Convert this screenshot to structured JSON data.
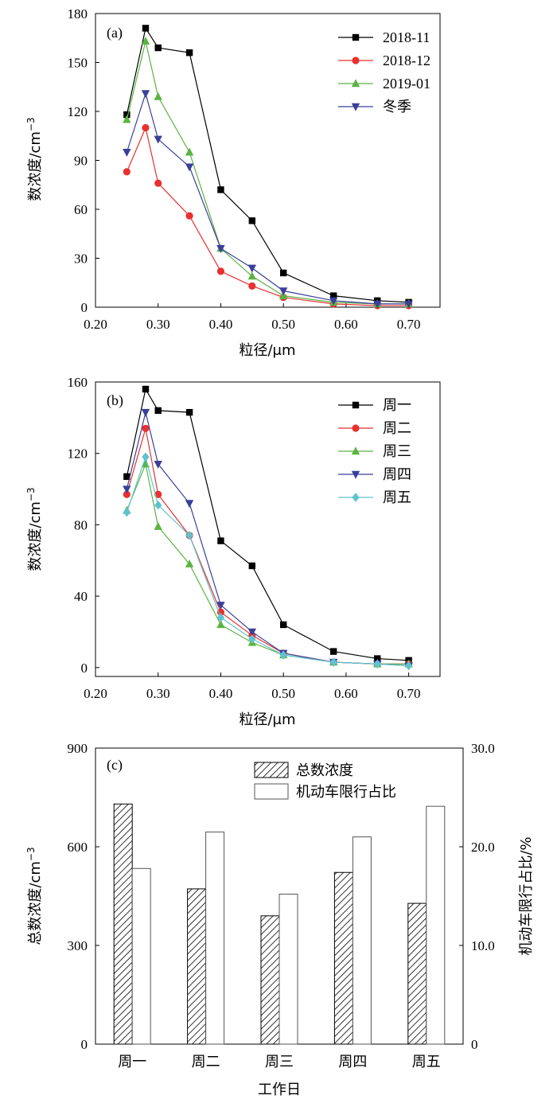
{
  "figure": {
    "panels": [
      "(a)",
      "(b)",
      "(c)"
    ]
  },
  "chart_data": [
    {
      "panel": "(a)",
      "type": "line",
      "xlabel": "粒径/μm",
      "ylabel": "数浓度/cm",
      "ylabel_sup": "−3",
      "xlim": [
        0.2,
        0.75
      ],
      "ylim": [
        0,
        180
      ],
      "xticks": [
        "0.20",
        "0.30",
        "0.40",
        "0.50",
        "0.60",
        "0.70"
      ],
      "yticks": [
        "0",
        "30",
        "60",
        "90",
        "120",
        "150",
        "180"
      ],
      "legend_position": "top-right",
      "x": [
        0.25,
        0.28,
        0.3,
        0.35,
        0.4,
        0.45,
        0.5,
        0.58,
        0.65,
        0.7
      ],
      "series": [
        {
          "name": "2018-11",
          "color": "#000000",
          "marker": "square",
          "values": [
            118,
            171,
            159,
            156,
            72,
            53,
            21,
            7,
            4,
            3
          ]
        },
        {
          "name": "2018-12",
          "color": "#e8312f",
          "marker": "circle",
          "values": [
            83,
            110,
            76,
            56,
            22,
            13,
            6,
            2,
            1,
            1
          ]
        },
        {
          "name": "2019-01",
          "color": "#5bb342",
          "marker": "triangle-up",
          "values": [
            115,
            163,
            129,
            95,
            36,
            19,
            7,
            3,
            2,
            2
          ]
        },
        {
          "name": "冬季",
          "color": "#3a3f99",
          "marker": "triangle-down",
          "values": [
            95,
            131,
            103,
            86,
            36,
            24,
            10,
            4,
            2,
            2
          ]
        }
      ]
    },
    {
      "panel": "(b)",
      "type": "line",
      "xlabel": "粒径/μm",
      "ylabel": "数浓度/cm",
      "ylabel_sup": "−3",
      "xlim": [
        0.2,
        0.75
      ],
      "ylim": [
        -5,
        160
      ],
      "xticks": [
        "0.20",
        "0.30",
        "0.40",
        "0.50",
        "0.60",
        "0.70"
      ],
      "yticks": [
        "0",
        "40",
        "80",
        "120",
        "160"
      ],
      "legend_position": "top-right",
      "x": [
        0.25,
        0.28,
        0.3,
        0.35,
        0.4,
        0.45,
        0.5,
        0.58,
        0.65,
        0.7
      ],
      "series": [
        {
          "name": "周一",
          "color": "#000000",
          "marker": "square",
          "values": [
            107,
            156,
            144,
            143,
            71,
            57,
            24,
            9,
            5,
            4
          ]
        },
        {
          "name": "周二",
          "color": "#e8312f",
          "marker": "circle",
          "values": [
            97,
            134,
            97,
            74,
            31,
            18,
            8,
            3,
            2,
            2
          ]
        },
        {
          "name": "周三",
          "color": "#5bb342",
          "marker": "triangle-up",
          "values": [
            88,
            114,
            79,
            58,
            24,
            14,
            7,
            3,
            2,
            2
          ]
        },
        {
          "name": "周四",
          "color": "#3a3f99",
          "marker": "triangle-down",
          "values": [
            100,
            143,
            114,
            92,
            35,
            20,
            8,
            3,
            2,
            1
          ]
        },
        {
          "name": "周五",
          "color": "#5fc3cf",
          "marker": "diamond",
          "values": [
            87,
            118,
            91,
            74,
            28,
            16,
            7,
            3,
            2,
            1
          ]
        }
      ]
    },
    {
      "panel": "(c)",
      "type": "bar",
      "xlabel": "工作日",
      "ylabel": "总数浓度/cm",
      "ylabel_sup": "−3",
      "y2label": "机动车限行占比/%",
      "ylim": [
        0,
        900
      ],
      "y2lim": [
        0,
        30
      ],
      "yticks": [
        "0",
        "300",
        "600",
        "900"
      ],
      "y2ticks": [
        "0",
        "10.0",
        "20.0",
        "30.0"
      ],
      "categories": [
        "周一",
        "周二",
        "周三",
        "周四",
        "周五"
      ],
      "legend_position": "top-center",
      "series": [
        {
          "name": "总数浓度",
          "axis": "left",
          "pattern": "hatch",
          "values": [
            730,
            472,
            390,
            522,
            428
          ]
        },
        {
          "name": "机动车限行占比",
          "axis": "right",
          "pattern": "open",
          "values": [
            17.8,
            21.5,
            15.2,
            21.0,
            24.1
          ]
        }
      ]
    }
  ]
}
